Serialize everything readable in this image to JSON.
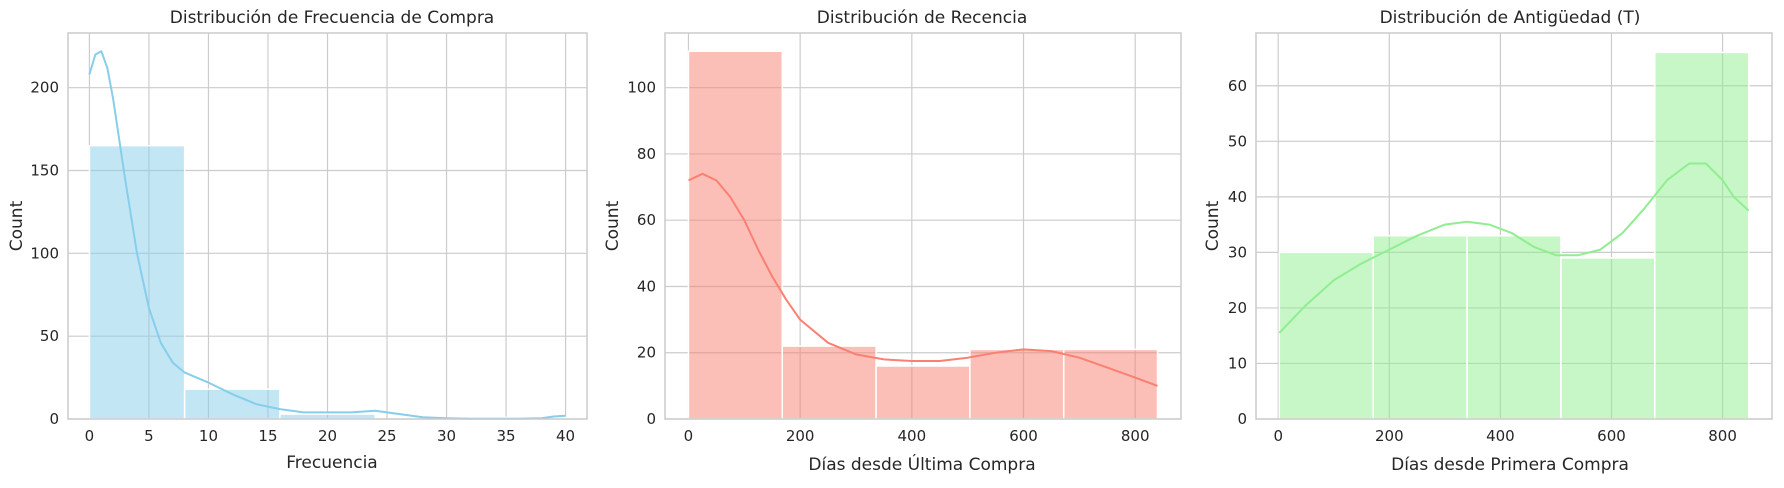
{
  "chart_data": [
    {
      "type": "bar",
      "title": "Distribución de Frecuencia de Compra",
      "xlabel": "Frecuencia",
      "ylabel": "Count",
      "color": "#87ceeb",
      "bin_edges": [
        0,
        8,
        16,
        24,
        32,
        40
      ],
      "values": [
        165,
        18,
        3,
        0,
        1
      ],
      "kde": {
        "x": [
          0,
          0.5,
          1,
          1.5,
          2,
          3,
          4,
          5,
          6,
          7,
          8,
          10,
          12,
          14,
          16,
          18,
          20,
          22,
          24,
          25,
          26,
          28,
          30,
          32,
          34,
          36,
          38,
          39,
          40
        ],
        "y": [
          208,
          220,
          222,
          212,
          193,
          145,
          100,
          67,
          46,
          34,
          28,
          22,
          15,
          9,
          6,
          4,
          4,
          4,
          5,
          4,
          3,
          1,
          0.5,
          0.2,
          0.1,
          0.1,
          0.5,
          1.5,
          2
        ]
      },
      "xlim": [
        -1.8,
        41.8
      ],
      "ylim": [
        0,
        233
      ],
      "xticks": [
        0,
        5,
        10,
        15,
        20,
        25,
        30,
        35,
        40
      ],
      "yticks": [
        0,
        50,
        100,
        150,
        200
      ],
      "grid": true
    },
    {
      "type": "bar",
      "title": "Distribución de Recencia",
      "xlabel": "Días desde Última Compra",
      "ylabel": "Count",
      "color": "#fa8072",
      "bin_edges": [
        0,
        168,
        336,
        504,
        672,
        840
      ],
      "values": [
        111,
        22,
        16,
        21,
        21
      ],
      "kde": {
        "x": [
          0,
          25,
          50,
          75,
          100,
          125,
          150,
          175,
          200,
          250,
          300,
          350,
          400,
          450,
          500,
          550,
          600,
          650,
          700,
          750,
          800,
          840
        ],
        "y": [
          72,
          74,
          72,
          67,
          60,
          51,
          43,
          36,
          30,
          23,
          19.5,
          18,
          17.5,
          17.5,
          18.5,
          20,
          21,
          20.5,
          18.5,
          15.5,
          12.5,
          10
        ]
      },
      "xlim": [
        -42,
        882
      ],
      "ylim": [
        0,
        116.5
      ],
      "xticks": [
        0,
        200,
        400,
        600,
        800
      ],
      "yticks": [
        0,
        20,
        40,
        60,
        80,
        100
      ],
      "grid": true
    },
    {
      "type": "bar",
      "title": "Distribución de Antigüedad (T)",
      "xlabel": "Días desde Primera Compra",
      "ylabel": "Count",
      "color": "#90ee90",
      "bin_edges": [
        2,
        171,
        340,
        509,
        678,
        847
      ],
      "values": [
        30,
        33,
        33,
        29,
        66
      ],
      "kde": {
        "x": [
          2,
          50,
          100,
          150,
          200,
          250,
          300,
          340,
          380,
          420,
          460,
          500,
          540,
          580,
          620,
          660,
          700,
          740,
          770,
          800,
          820,
          847
        ],
        "y": [
          15.5,
          20.5,
          25,
          28,
          30.5,
          33,
          35,
          35.5,
          35,
          33.5,
          31,
          29.5,
          29.5,
          30.5,
          33.5,
          38,
          43,
          46,
          46,
          43,
          40,
          37.5
        ]
      },
      "xlim": [
        -40,
        889
      ],
      "ylim": [
        0,
        69.5
      ],
      "xticks": [
        0,
        200,
        400,
        600,
        800
      ],
      "yticks": [
        0,
        10,
        20,
        30,
        40,
        50,
        60
      ],
      "grid": true
    }
  ]
}
